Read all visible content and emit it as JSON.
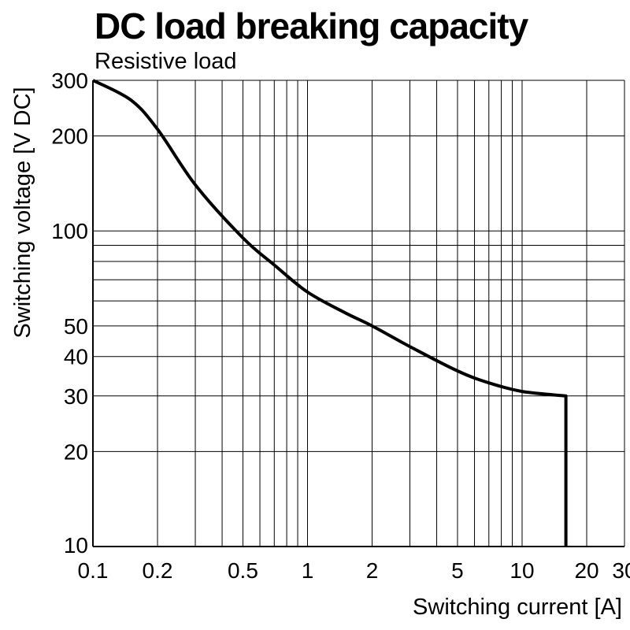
{
  "chart_data": {
    "type": "line",
    "title": "DC load breaking capacity",
    "subtitle": "Resistive load",
    "xlabel": "Switching current [A]",
    "ylabel": "Switching voltage [V DC]",
    "xscale": "log",
    "yscale": "log",
    "xlim": [
      0.1,
      30
    ],
    "ylim": [
      10,
      300
    ],
    "grid": true,
    "x_ticks": [
      0.1,
      0.2,
      0.5,
      1,
      2,
      5,
      10,
      20,
      30
    ],
    "x_tick_labels": [
      "0.1",
      "0.2",
      "0.5",
      "1",
      "2",
      "5",
      "10",
      "20",
      "30"
    ],
    "y_ticks": [
      10,
      20,
      30,
      40,
      50,
      100,
      200,
      300
    ],
    "y_tick_labels": [
      "10",
      "20",
      "30",
      "40",
      "50",
      "100",
      "200",
      "300"
    ],
    "x_gridlines": [
      0.2,
      0.3,
      0.4,
      0.5,
      0.6,
      0.7,
      0.8,
      0.9,
      1,
      2,
      3,
      4,
      5,
      6,
      7,
      8,
      9,
      10,
      20,
      30
    ],
    "y_gridlines": [
      20,
      30,
      40,
      50,
      60,
      70,
      80,
      90,
      100,
      200,
      300
    ],
    "series": [
      {
        "x": [
          0.1,
          0.15,
          0.2,
          0.3,
          0.5,
          0.7,
          1,
          1.5,
          2,
          3,
          5,
          7,
          10,
          16,
          16
        ],
        "y": [
          300,
          260,
          210,
          140,
          95,
          78,
          64,
          55,
          50,
          43,
          36,
          33,
          31,
          30,
          10
        ]
      }
    ]
  }
}
